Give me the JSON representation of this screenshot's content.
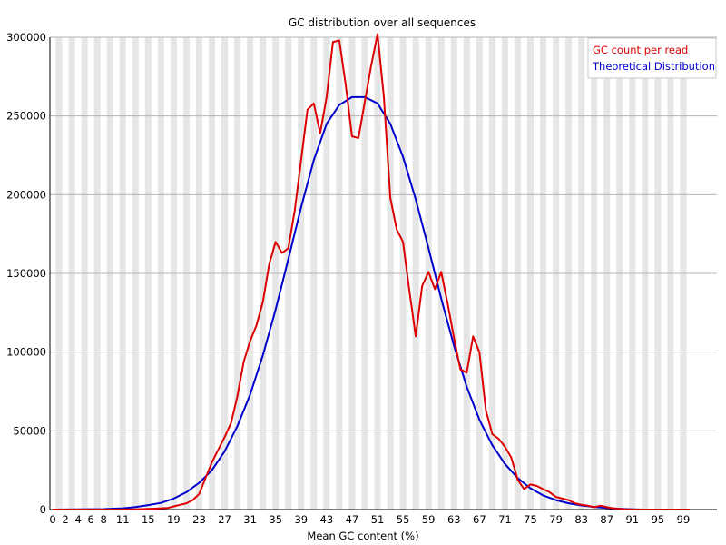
{
  "chart_data": {
    "type": "line",
    "title": "GC distribution over all sequences",
    "xlabel": "Mean GC content (%)",
    "ylabel": "",
    "xlim": [
      0,
      100
    ],
    "ylim": [
      0,
      300000
    ],
    "grid": "alternating vertical bands, horizontal gridlines",
    "legend_position": "top-right",
    "y_ticks": [
      "0",
      "50000",
      "100000",
      "150000",
      "200000",
      "250000",
      "300000"
    ],
    "x_ticks": [
      "0",
      "2",
      "4",
      "6",
      "8",
      "11",
      "15",
      "19",
      "23",
      "27",
      "31",
      "35",
      "39",
      "43",
      "47",
      "51",
      "55",
      "59",
      "63",
      "67",
      "71",
      "75",
      "79",
      "83",
      "87",
      "91",
      "95",
      "99"
    ],
    "series": [
      {
        "name": "GC count per read",
        "color": "#dd0000",
        "points": [
          [
            0,
            0
          ],
          [
            5,
            0
          ],
          [
            10,
            0
          ],
          [
            13,
            200
          ],
          [
            16,
            600
          ],
          [
            18,
            1000
          ],
          [
            19,
            2000
          ],
          [
            20,
            3000
          ],
          [
            21,
            4000
          ],
          [
            22,
            6000
          ],
          [
            23,
            10000
          ],
          [
            24,
            20000
          ],
          [
            25,
            30000
          ],
          [
            26,
            38000
          ],
          [
            27,
            46000
          ],
          [
            28,
            55000
          ],
          [
            29,
            72000
          ],
          [
            30,
            94000
          ],
          [
            31,
            107000
          ],
          [
            32,
            117000
          ],
          [
            33,
            132000
          ],
          [
            34,
            156000
          ],
          [
            35,
            170000
          ],
          [
            36,
            163000
          ],
          [
            37,
            166000
          ],
          [
            38,
            190000
          ],
          [
            39,
            222000
          ],
          [
            40,
            254000
          ],
          [
            41,
            258000
          ],
          [
            42,
            239000
          ],
          [
            43,
            262000
          ],
          [
            44,
            297000
          ],
          [
            45,
            298000
          ],
          [
            46,
            270000
          ],
          [
            47,
            237000
          ],
          [
            48,
            236000
          ],
          [
            49,
            259000
          ],
          [
            50,
            282000
          ],
          [
            51,
            302000
          ],
          [
            52,
            262000
          ],
          [
            53,
            198000
          ],
          [
            54,
            178000
          ],
          [
            55,
            170000
          ],
          [
            56,
            139000
          ],
          [
            57,
            110000
          ],
          [
            58,
            142000
          ],
          [
            59,
            151000
          ],
          [
            60,
            140000
          ],
          [
            61,
            151000
          ],
          [
            62,
            131000
          ],
          [
            63,
            109000
          ],
          [
            64,
            89000
          ],
          [
            65,
            87000
          ],
          [
            66,
            110000
          ],
          [
            67,
            100000
          ],
          [
            68,
            63000
          ],
          [
            69,
            48000
          ],
          [
            70,
            45000
          ],
          [
            71,
            40000
          ],
          [
            72,
            33000
          ],
          [
            73,
            19000
          ],
          [
            74,
            13000
          ],
          [
            75,
            16000
          ],
          [
            76,
            15000
          ],
          [
            77,
            13000
          ],
          [
            78,
            11000
          ],
          [
            79,
            8000
          ],
          [
            80,
            7000
          ],
          [
            81,
            6000
          ],
          [
            82,
            4000
          ],
          [
            83,
            3000
          ],
          [
            84,
            2500
          ],
          [
            85,
            1500
          ],
          [
            86,
            2500
          ],
          [
            87,
            1500
          ],
          [
            88,
            800
          ],
          [
            89,
            400
          ],
          [
            90,
            200
          ],
          [
            92,
            0
          ],
          [
            100,
            0
          ]
        ]
      },
      {
        "name": "Theoretical Distribution",
        "color": "#0000cc",
        "points": [
          [
            0,
            0
          ],
          [
            8,
            300
          ],
          [
            11,
            800
          ],
          [
            13,
            1600
          ],
          [
            15,
            2800
          ],
          [
            17,
            4200
          ],
          [
            19,
            7000
          ],
          [
            21,
            11000
          ],
          [
            23,
            17000
          ],
          [
            25,
            25000
          ],
          [
            27,
            37000
          ],
          [
            29,
            53000
          ],
          [
            31,
            73000
          ],
          [
            33,
            98000
          ],
          [
            35,
            127000
          ],
          [
            37,
            159000
          ],
          [
            39,
            192000
          ],
          [
            41,
            222000
          ],
          [
            43,
            245000
          ],
          [
            45,
            257000
          ],
          [
            47,
            262000
          ],
          [
            49,
            262000
          ],
          [
            51,
            258000
          ],
          [
            53,
            245000
          ],
          [
            55,
            224000
          ],
          [
            57,
            197000
          ],
          [
            59,
            166000
          ],
          [
            61,
            134000
          ],
          [
            63,
            104000
          ],
          [
            65,
            78000
          ],
          [
            67,
            57000
          ],
          [
            69,
            41000
          ],
          [
            71,
            29000
          ],
          [
            73,
            20000
          ],
          [
            75,
            13500
          ],
          [
            77,
            9000
          ],
          [
            79,
            6000
          ],
          [
            81,
            4000
          ],
          [
            83,
            2600
          ],
          [
            85,
            1700
          ],
          [
            87,
            1000
          ],
          [
            89,
            500
          ],
          [
            91,
            200
          ],
          [
            93,
            0
          ],
          [
            100,
            0
          ]
        ]
      }
    ]
  }
}
